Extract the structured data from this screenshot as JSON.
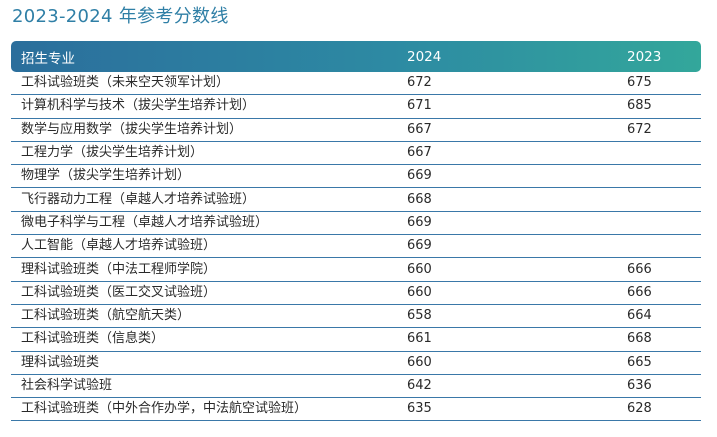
{
  "page_title": "2023-2024 年参考分数线",
  "table": {
    "headers": {
      "major": "招生专业",
      "y2024": "2024",
      "y2023": "2023"
    },
    "rows": [
      {
        "major": "工科试验班类（未来空天领军计划）",
        "y2024": "672",
        "y2023": "675"
      },
      {
        "major": "计算机科学与技术（拔尖学生培养计划）",
        "y2024": "671",
        "y2023": "685"
      },
      {
        "major": "数学与应用数学（拔尖学生培养计划）",
        "y2024": "667",
        "y2023": "672"
      },
      {
        "major": "工程力学（拔尖学生培养计划）",
        "y2024": "667",
        "y2023": ""
      },
      {
        "major": "物理学（拔尖学生培养计划）",
        "y2024": "669",
        "y2023": ""
      },
      {
        "major": "飞行器动力工程（卓越人才培养试验班）",
        "y2024": "668",
        "y2023": ""
      },
      {
        "major": "微电子科学与工程（卓越人才培养试验班）",
        "y2024": "669",
        "y2023": ""
      },
      {
        "major": "人工智能（卓越人才培养试验班）",
        "y2024": "669",
        "y2023": ""
      },
      {
        "major": "理科试验班类（中法工程师学院）",
        "y2024": "660",
        "y2023": "666"
      },
      {
        "major": "工科试验班类（医工交叉试验班）",
        "y2024": "660",
        "y2023": "666"
      },
      {
        "major": "工科试验班类（航空航天类）",
        "y2024": "658",
        "y2023": "664"
      },
      {
        "major": "工科试验班类（信息类）",
        "y2024": "661",
        "y2023": "668"
      },
      {
        "major": "理科试验班类",
        "y2024": "660",
        "y2023": "665"
      },
      {
        "major": "社会科学试验班",
        "y2024": "642",
        "y2023": "636"
      },
      {
        "major": "工科试验班类（中外合作办学，中法航空试验班）",
        "y2024": "635",
        "y2023": "628"
      }
    ]
  }
}
